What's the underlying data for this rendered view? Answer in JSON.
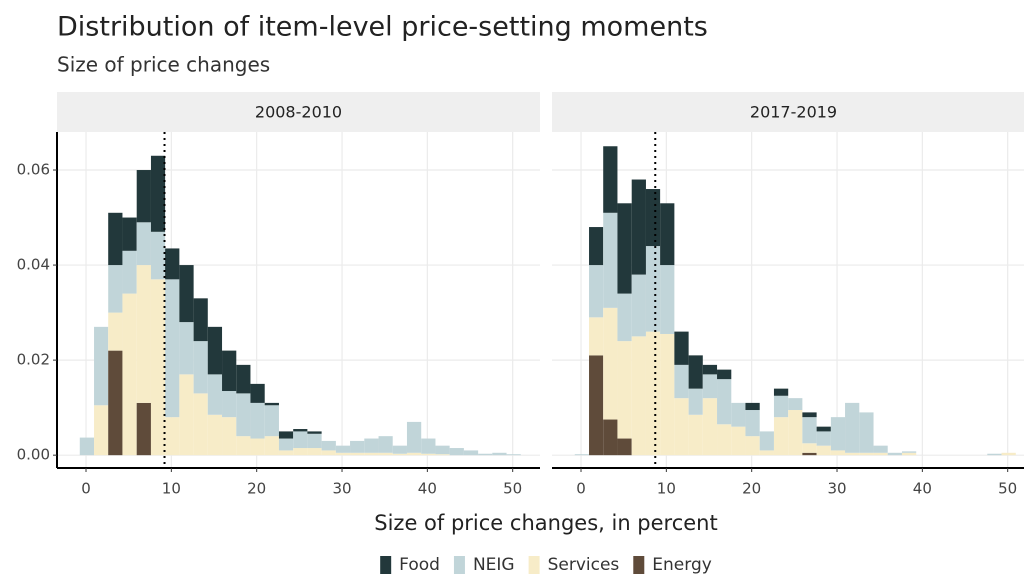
{
  "chart_data": {
    "type": "histogram",
    "stacked": true,
    "title": "Distribution of item-level price-setting moments",
    "subtitle": "Size of price changes",
    "xlabel": "Size of price changes, in percent",
    "grid": true,
    "legend": "bottom",
    "xlim": [
      -3.4,
      53.2
    ],
    "xticks": [
      0,
      10,
      20,
      30,
      40,
      50
    ],
    "ylim": [
      -0.0027,
      0.068
    ],
    "yticks": [
      {
        "value": 0,
        "label": "0.00"
      },
      0.02,
      0.04,
      0.06
    ],
    "bins": [
      -0.73,
      0.94,
      2.6,
      4.27,
      5.94,
      7.61,
      9.27,
      10.94,
      12.61,
      14.27,
      15.94,
      17.61,
      19.27,
      20.94,
      22.61,
      24.28,
      25.94,
      27.61,
      29.28,
      30.94,
      32.61,
      34.28,
      35.94,
      37.61,
      39.28,
      40.95,
      42.61,
      44.28,
      45.95,
      47.61,
      49.28,
      50.95
    ],
    "series": [
      {
        "name": "Food",
        "color": "#22383b"
      },
      {
        "name": "NEIG",
        "color": "#c1d5d9"
      },
      {
        "name": "Services",
        "color": "#f7ecc8"
      },
      {
        "name": "Energy",
        "color": "#5f4b3a"
      }
    ],
    "panels": [
      {
        "title": "2008-2010",
        "vline": 9.2,
        "series": [
          {
            "values": [
              0,
              0,
              0.011,
              0.007,
              0.011,
              0.016,
              0.0065,
              0.012,
              0.009,
              0.01,
              0.0085,
              0.006,
              0.004,
              0.0005,
              0.0015,
              0.0005,
              0.0005,
              0,
              0,
              0,
              0,
              0,
              0,
              0,
              0,
              0,
              0,
              0,
              0,
              0,
              0
            ]
          },
          {
            "values": [
              0.0037,
              0.0165,
              0.01,
              0.009,
              0.009,
              0.01,
              0.029,
              0.011,
              0.011,
              0.0085,
              0.0055,
              0.009,
              0.0075,
              0.0065,
              0.0025,
              0.0035,
              0.003,
              0.002,
              0.0015,
              0.0025,
              0.003,
              0.0035,
              0.0017,
              0.0065,
              0.0032,
              0.0018,
              0.0015,
              0.001,
              0.0003,
              0.0005,
              0.0002
            ]
          },
          {
            "values": [
              0,
              0.0105,
              0.008,
              0.034,
              0.029,
              0.037,
              0.008,
              0.017,
              0.013,
              0.0085,
              0.008,
              0.004,
              0.0035,
              0.004,
              0.001,
              0.0015,
              0.0015,
              0.001,
              0.0005,
              0.0005,
              0.0005,
              0.0005,
              0.0003,
              0.0005,
              0.0003,
              0.0002,
              0,
              0,
              0,
              0,
              0
            ]
          },
          {
            "values": [
              0,
              0,
              0.022,
              0,
              0.011,
              0,
              0,
              0,
              0,
              0,
              0,
              0,
              0,
              0,
              0,
              0,
              0,
              0,
              0,
              0,
              0,
              0,
              0,
              0,
              0,
              0,
              0,
              0,
              0,
              0,
              0
            ]
          }
        ]
      },
      {
        "title": "2017-2019",
        "vline": 8.7,
        "series": [
          {
            "values": [
              0,
              0.008,
              0.014,
              0.019,
              0.02,
              0.012,
              0.013,
              0.007,
              0.007,
              0.002,
              0.002,
              0,
              0.0015,
              0,
              0.0015,
              0,
              0.001,
              0.001,
              0,
              0,
              0,
              0,
              0,
              0,
              0,
              0,
              0,
              0,
              0,
              0,
              0
            ]
          },
          {
            "values": [
              0.0002,
              0.011,
              0.02,
              0.01,
              0.013,
              0.018,
              0.0145,
              0.007,
              0.0055,
              0.005,
              0.0095,
              0.005,
              0.0055,
              0.004,
              0.0045,
              0.0025,
              0.0055,
              0.003,
              0.007,
              0.0105,
              0.0085,
              0.0015,
              0.0005,
              0.0003,
              0,
              0,
              0,
              0,
              0,
              0.0003,
              0
            ]
          },
          {
            "values": [
              0,
              0.008,
              0.0235,
              0.0205,
              0.025,
              0.026,
              0.0255,
              0.012,
              0.0085,
              0.012,
              0.0065,
              0.006,
              0.004,
              0.001,
              0.008,
              0.0095,
              0.002,
              0.002,
              0.001,
              0.0005,
              0.0005,
              0.0005,
              0,
              0.0005,
              0,
              0,
              0,
              0,
              0,
              0,
              0.0005
            ]
          },
          {
            "values": [
              0,
              0.021,
              0.0075,
              0.0035,
              0,
              0,
              0,
              0,
              0,
              0,
              0,
              0,
              0,
              0,
              0,
              0,
              0.0005,
              0,
              0,
              0,
              0,
              0,
              0,
              0,
              0,
              0,
              0,
              0,
              0,
              0,
              0
            ]
          }
        ]
      }
    ]
  }
}
